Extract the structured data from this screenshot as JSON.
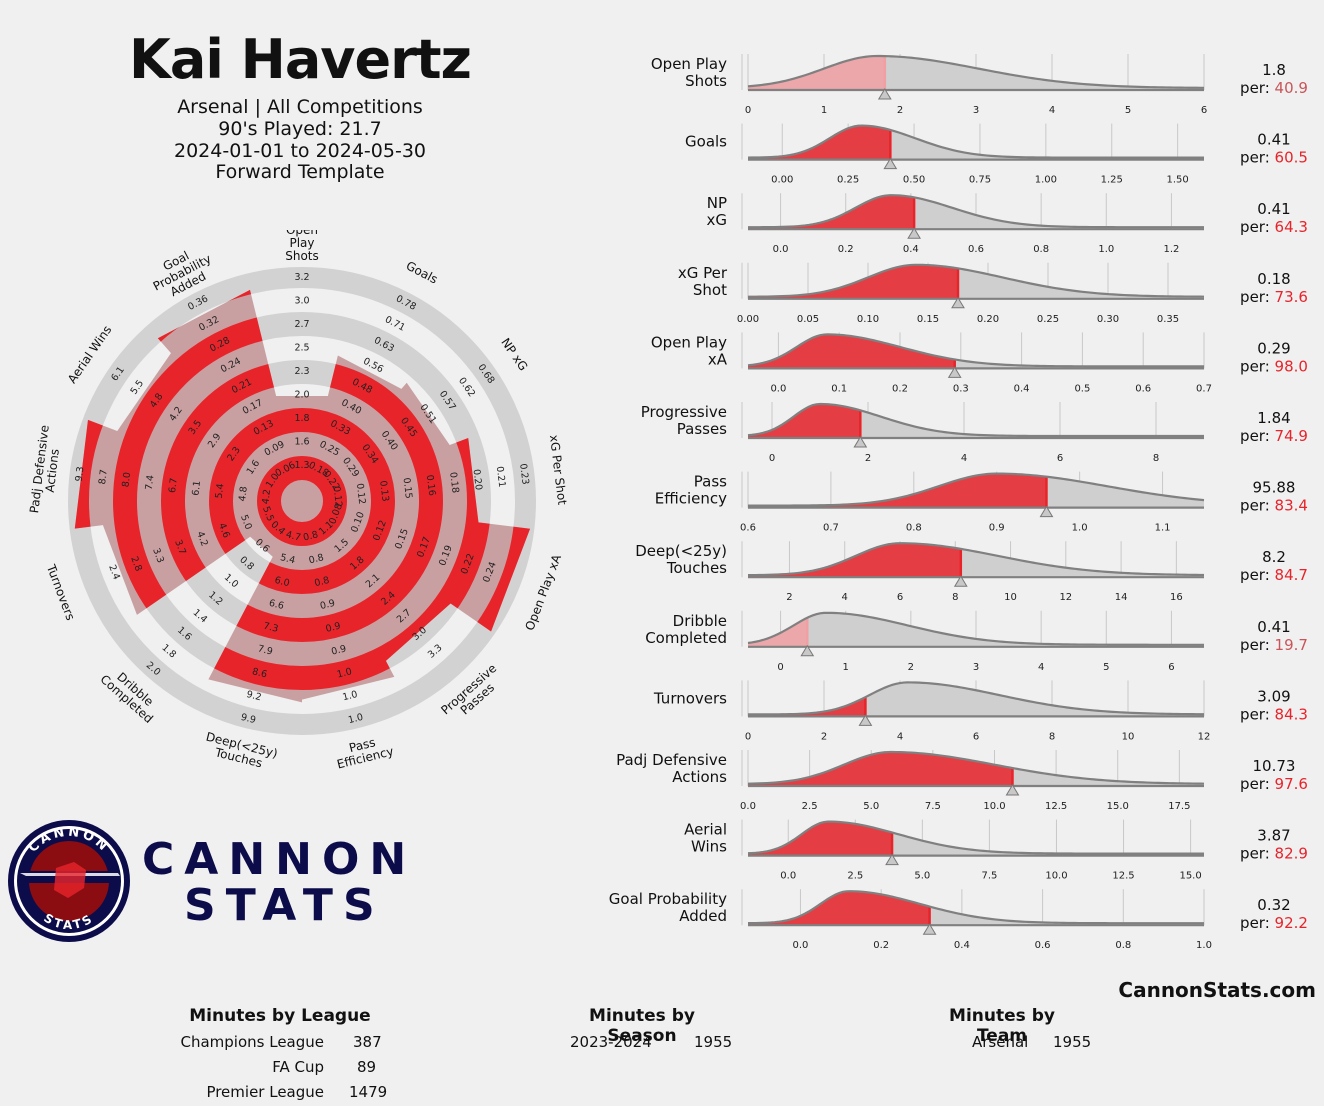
{
  "header": {
    "player": "Kai Havertz",
    "line1": "Arsenal | All Competitions",
    "line2": "90's Played: 21.7",
    "line3": "2024-01-01 to 2024-05-30",
    "line4": "Forward Template"
  },
  "logo": {
    "ring_top": "CANNON",
    "ring_bottom": "STATS",
    "word1": "CANNON",
    "word2": "STATS"
  },
  "site": "CannonStats.com",
  "per_prefix": "per:",
  "chart_data": [
    {
      "type": "radar",
      "title": "",
      "metrics": [
        {
          "name": "Open Play Shots",
          "value": 1.8,
          "percentile": 40.9,
          "ticks": [
            "1.3",
            "1.6",
            "1.8",
            "2.0",
            "2.3",
            "2.5",
            "2.7",
            "3.0",
            "3.2"
          ]
        },
        {
          "name": "Goals",
          "value": 0.41,
          "percentile": 60.5,
          "ticks": [
            "0.18",
            "0.25",
            "0.33",
            "0.40",
            "0.48",
            "0.56",
            "0.63",
            "0.71",
            "0.78"
          ]
        },
        {
          "name": "NP xG",
          "value": 0.41,
          "percentile": 64.3,
          "ticks": [
            "0.22",
            "0.29",
            "0.34",
            "0.40",
            "0.45",
            "0.51",
            "0.57",
            "0.62",
            "0.68"
          ]
        },
        {
          "name": "xG Per Shot",
          "value": 0.18,
          "percentile": 73.6,
          "ticks": [
            "0.12",
            "0.12",
            "0.13",
            "0.15",
            "0.16",
            "0.18",
            "0.20",
            "0.21",
            "0.23"
          ]
        },
        {
          "name": "Open Play xA",
          "value": 0.29,
          "percentile": 98.0,
          "ticks": [
            "0.08",
            "0.10",
            "0.12",
            "0.15",
            "0.17",
            "0.19",
            "0.22",
            "0.24"
          ]
        },
        {
          "name": "Progressive Passes",
          "value": 1.84,
          "percentile": 74.9,
          "ticks": [
            "1.1",
            "1.5",
            "1.8",
            "2.1",
            "2.4",
            "2.7",
            "3.0",
            "3.3"
          ]
        },
        {
          "name": "Pass Efficiency",
          "value": 95.88,
          "percentile": 83.4,
          "ticks": [
            "0.8",
            "0.8",
            "0.8",
            "0.9",
            "0.9",
            "0.9",
            "1.0",
            "1.0",
            "1.0"
          ]
        },
        {
          "name": "Deep(<25y) Touches",
          "value": 8.2,
          "percentile": 84.7,
          "ticks": [
            "4.7",
            "5.4",
            "6.0",
            "6.6",
            "7.3",
            "7.9",
            "8.6",
            "9.2",
            "9.9"
          ]
        },
        {
          "name": "Dribble Completed",
          "value": 0.41,
          "percentile": 19.7,
          "ticks": [
            "0.4",
            "0.6",
            "0.8",
            "1.0",
            "1.2",
            "1.4",
            "1.6",
            "1.8",
            "2.0"
          ]
        },
        {
          "name": "Turnovers",
          "value": 3.09,
          "percentile": 84.3,
          "ticks": [
            "5.5",
            "5.0",
            "4.6",
            "4.2",
            "3.7",
            "3.3",
            "2.8",
            "2.4"
          ]
        },
        {
          "name": "Padj Defensive Actions",
          "value": 10.73,
          "percentile": 97.6,
          "ticks": [
            "4.2",
            "4.8",
            "5.4",
            "6.1",
            "6.7",
            "7.4",
            "8.0",
            "8.7",
            "9.3"
          ]
        },
        {
          "name": "Aerial Wins",
          "value": 3.87,
          "percentile": 82.9,
          "ticks": [
            "1.0",
            "1.6",
            "2.3",
            "2.9",
            "3.5",
            "4.2",
            "4.8",
            "5.5",
            "6.1"
          ]
        },
        {
          "name": "Goal Probability Added",
          "value": 0.32,
          "percentile": 92.2,
          "ticks": [
            "0.06",
            "0.09",
            "0.13",
            "0.17",
            "0.21",
            "0.24",
            "0.28",
            "0.32",
            "0.36"
          ]
        }
      ]
    },
    {
      "type": "area",
      "rows": [
        {
          "label": [
            "Open Play",
            "Shots"
          ],
          "value": "1.8",
          "per": "40.9",
          "xmin": 0,
          "xmax": 6,
          "ticks": [
            "0",
            "1",
            "2",
            "3",
            "4",
            "5",
            "6"
          ],
          "marker": 1.8,
          "peak": 1.7,
          "spread": 0.7,
          "skew": 0.9
        },
        {
          "label": [
            "Goals"
          ],
          "value": "0.41",
          "per": "60.5",
          "xmin": -0.13,
          "xmax": 1.6,
          "ticks": [
            "0.00",
            "0.25",
            "0.50",
            "0.75",
            "1.00",
            "1.25",
            "1.50"
          ],
          "marker": 0.41,
          "peak": 0.3,
          "spread": 0.12,
          "skew": 0.7
        },
        {
          "label": [
            "NP",
            "xG"
          ],
          "value": "0.41",
          "per": "64.3",
          "xmin": -0.1,
          "xmax": 1.3,
          "ticks": [
            "0.0",
            "0.2",
            "0.4",
            "0.6",
            "0.8",
            "1.0",
            "1.2"
          ],
          "marker": 0.41,
          "peak": 0.34,
          "spread": 0.11,
          "skew": 0.7
        },
        {
          "label": [
            "xG Per",
            "Shot"
          ],
          "value": "0.18",
          "per": "73.6",
          "xmin": 0,
          "xmax": 0.38,
          "ticks": [
            "0.00",
            "0.05",
            "0.10",
            "0.15",
            "0.20",
            "0.25",
            "0.30",
            "0.35"
          ],
          "marker": 0.175,
          "peak": 0.14,
          "spread": 0.04,
          "skew": 0.8
        },
        {
          "label": [
            "Open Play",
            "xA"
          ],
          "value": "0.29",
          "per": "98.0",
          "xmin": -0.05,
          "xmax": 0.7,
          "ticks": [
            "0.0",
            "0.1",
            "0.2",
            "0.3",
            "0.4",
            "0.5",
            "0.6",
            "0.7"
          ],
          "marker": 0.29,
          "peak": 0.08,
          "spread": 0.05,
          "skew": 1.4
        },
        {
          "label": [
            "Progressive",
            "Passes"
          ],
          "value": "1.84",
          "per": "74.9",
          "xmin": -0.5,
          "xmax": 9,
          "ticks": [
            "0",
            "2",
            "4",
            "6",
            "8"
          ],
          "marker": 1.84,
          "peak": 1.0,
          "spread": 0.55,
          "skew": 1.3
        },
        {
          "label": [
            "Pass",
            "Efficiency"
          ],
          "value": "95.88",
          "per": "83.4",
          "xmin": 0.6,
          "xmax": 1.15,
          "ticks": [
            "0.6",
            "0.7",
            "0.8",
            "0.9",
            "1.0",
            "1.1"
          ],
          "marker": 0.96,
          "peak": 0.9,
          "spread": 0.07,
          "skew": 0.9
        },
        {
          "label": [
            "Deep(<25y)",
            "Touches"
          ],
          "value": "8.2",
          "per": "84.7",
          "xmin": 0.5,
          "xmax": 17,
          "ticks": [
            "2",
            "4",
            "6",
            "8",
            "10",
            "12",
            "14",
            "16"
          ],
          "marker": 8.2,
          "peak": 6.0,
          "spread": 1.6,
          "skew": 1.2
        },
        {
          "label": [
            "Dribble",
            "Completed"
          ],
          "value": "0.41",
          "per": "19.7",
          "xmin": -0.5,
          "xmax": 6.5,
          "ticks": [
            "0",
            "1",
            "2",
            "3",
            "4",
            "5",
            "6"
          ],
          "marker": 0.41,
          "peak": 0.7,
          "spread": 0.5,
          "skew": 1.5
        },
        {
          "label": [
            "Turnovers"
          ],
          "value": "3.09",
          "per": "84.3",
          "xmin": 0,
          "xmax": 12,
          "ticks": [
            "0",
            "2",
            "4",
            "6",
            "8",
            "10",
            "12"
          ],
          "marker": 3.09,
          "peak": 4.2,
          "spread": 1.0,
          "skew": 1.4
        },
        {
          "label": [
            "Padj Defensive",
            "Actions"
          ],
          "value": "10.73",
          "per": "97.6",
          "xmin": 0,
          "xmax": 18.5,
          "ticks": [
            "0.0",
            "2.5",
            "5.0",
            "7.5",
            "10.0",
            "12.5",
            "15.0",
            "17.5"
          ],
          "marker": 10.73,
          "peak": 5.8,
          "spread": 1.9,
          "skew": 1.2
        },
        {
          "label": [
            "Aerial",
            "Wins"
          ],
          "value": "3.87",
          "per": "82.9",
          "xmin": -1.5,
          "xmax": 15.5,
          "ticks": [
            "0.0",
            "2.5",
            "5.0",
            "7.5",
            "10.0",
            "12.5",
            "15.0"
          ],
          "marker": 3.87,
          "peak": 1.5,
          "spread": 1.0,
          "skew": 1.6
        },
        {
          "label": [
            "Goal Probability",
            "Added"
          ],
          "value": "0.32",
          "per": "92.2",
          "xmin": -0.13,
          "xmax": 1.0,
          "ticks": [
            "0.0",
            "0.2",
            "0.4",
            "0.6",
            "0.8",
            "1.0"
          ],
          "marker": 0.32,
          "peak": 0.12,
          "spread": 0.07,
          "skew": 1.5
        }
      ]
    }
  ],
  "tables": {
    "league": {
      "title": "Minutes by League",
      "rows": [
        {
          "name": "Champions League",
          "minutes": "387"
        },
        {
          "name": "FA Cup",
          "minutes": "89"
        },
        {
          "name": "Premier League",
          "minutes": "1479"
        }
      ]
    },
    "season": {
      "title": "Minutes by Season",
      "rows": [
        {
          "name": "2023-2024",
          "minutes": "1955"
        }
      ]
    },
    "team": {
      "title": "Minutes by Team",
      "rows": [
        {
          "name": "Arsenal",
          "minutes": "1955"
        }
      ]
    }
  },
  "colors": {
    "red": "#e8242b",
    "pink": "#f0a0a3",
    "grey_ring": "#d2d2d2",
    "navy": "#0c0c4a",
    "dark_red": "#8b0d12"
  }
}
